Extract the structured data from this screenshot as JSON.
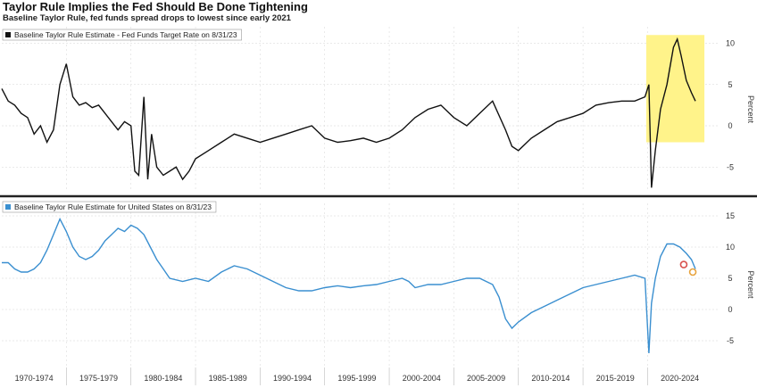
{
  "title": "Taylor Rule Implies the Fed Should Be Done Tightening",
  "subtitle": "Baseline Taylor Rule, fed funds spread drops to lowest since early 2021",
  "colors": {
    "spread_line": "#111111",
    "estimate_line": "#3a8fd0",
    "highlight": "#fff38a",
    "divider": "#222222",
    "grid": "#d4d4d4"
  },
  "chart_data": [
    {
      "type": "line",
      "legend": "Baseline Taylor Rule Estimate - Fed Funds Target Rate on 8/31/23",
      "ylabel": "Percent",
      "ylim": [
        -8,
        12
      ],
      "yticks": [
        10,
        5,
        0,
        -5
      ],
      "grid": true,
      "legend_position": "top-left",
      "highlight_region": {
        "x": [
          2019.9,
          2024.4
        ],
        "y": [
          -2,
          11
        ]
      },
      "x": [
        1970.0,
        1970.5,
        1971.0,
        1971.5,
        1972.0,
        1972.5,
        1973.0,
        1973.5,
        1974.0,
        1974.5,
        1975.0,
        1975.5,
        1976.0,
        1976.5,
        1977.0,
        1977.5,
        1978.0,
        1978.5,
        1979.0,
        1979.5,
        1980.0,
        1980.3,
        1980.6,
        1981.0,
        1981.3,
        1981.6,
        1982.0,
        1982.5,
        1983.0,
        1983.5,
        1984.0,
        1984.5,
        1985.0,
        1986.0,
        1987.0,
        1988.0,
        1989.0,
        1990.0,
        1991.0,
        1992.0,
        1993.0,
        1994.0,
        1995.0,
        1996.0,
        1997.0,
        1998.0,
        1999.0,
        2000.0,
        2001.0,
        2002.0,
        2003.0,
        2004.0,
        2005.0,
        2006.0,
        2007.0,
        2008.0,
        2009.0,
        2009.5,
        2010.0,
        2011.0,
        2012.0,
        2013.0,
        2014.0,
        2015.0,
        2016.0,
        2017.0,
        2018.0,
        2019.0,
        2019.8,
        2020.1,
        2020.3,
        2020.6,
        2021.0,
        2021.5,
        2022.0,
        2022.3,
        2022.6,
        2023.0,
        2023.4,
        2023.7
      ],
      "values": [
        4.5,
        3.0,
        2.5,
        1.5,
        1.0,
        -1.0,
        0.0,
        -2.0,
        -0.5,
        5.0,
        7.5,
        3.5,
        2.5,
        2.8,
        2.2,
        2.5,
        1.5,
        0.5,
        -0.5,
        0.5,
        0.0,
        -5.5,
        -6.0,
        3.5,
        -6.5,
        -1.0,
        -5.0,
        -6.0,
        -5.5,
        -5.0,
        -6.5,
        -5.5,
        -4.0,
        -3.0,
        -2.0,
        -1.0,
        -1.5,
        -2.0,
        -1.5,
        -1.0,
        -0.5,
        0.0,
        -1.5,
        -2.0,
        -1.8,
        -1.5,
        -2.0,
        -1.5,
        -0.5,
        1.0,
        2.0,
        2.5,
        1.0,
        0.0,
        1.5,
        3.0,
        -0.5,
        -2.5,
        -3.0,
        -1.5,
        -0.5,
        0.5,
        1.0,
        1.5,
        2.5,
        2.8,
        3.0,
        3.0,
        3.5,
        5.0,
        -7.5,
        -3.0,
        2.0,
        5.0,
        9.5,
        10.5,
        8.5,
        5.5,
        4.0,
        3.0
      ]
    },
    {
      "type": "line",
      "legend": "Baseline Taylor Rule Estimate for United States on 8/31/23",
      "ylabel": "Percent",
      "ylim": [
        -9,
        17
      ],
      "yticks": [
        15,
        10,
        5,
        0,
        -5
      ],
      "grid": true,
      "legend_position": "top-left",
      "categories": [
        "1970-1974",
        "1975-1979",
        "1980-1984",
        "1985-1989",
        "1990-1994",
        "1995-1999",
        "2000-2004",
        "2005-2009",
        "2010-2014",
        "2015-2019",
        "2020-2024"
      ],
      "x": [
        1970.0,
        1970.5,
        1971.0,
        1971.5,
        1972.0,
        1972.5,
        1973.0,
        1973.5,
        1974.0,
        1974.5,
        1975.0,
        1975.5,
        1976.0,
        1976.5,
        1977.0,
        1977.5,
        1978.0,
        1978.5,
        1979.0,
        1979.5,
        1980.0,
        1980.5,
        1981.0,
        1981.5,
        1982.0,
        1982.5,
        1983.0,
        1984.0,
        1985.0,
        1986.0,
        1987.0,
        1988.0,
        1989.0,
        1990.0,
        1991.0,
        1992.0,
        1993.0,
        1994.0,
        1995.0,
        1996.0,
        1997.0,
        1998.0,
        1999.0,
        2000.0,
        2001.0,
        2001.5,
        2002.0,
        2003.0,
        2004.0,
        2005.0,
        2006.0,
        2007.0,
        2008.0,
        2008.5,
        2009.0,
        2009.5,
        2010.0,
        2011.0,
        2012.0,
        2013.0,
        2014.0,
        2015.0,
        2016.0,
        2017.0,
        2018.0,
        2019.0,
        2019.8,
        2020.1,
        2020.3,
        2020.6,
        2021.0,
        2021.5,
        2022.0,
        2022.5,
        2023.0,
        2023.4,
        2023.7
      ],
      "values": [
        7.5,
        7.5,
        6.5,
        6.0,
        6.0,
        6.5,
        7.5,
        9.5,
        12.0,
        14.5,
        12.5,
        10.0,
        8.5,
        8.0,
        8.5,
        9.5,
        11.0,
        12.0,
        13.0,
        12.5,
        13.5,
        13.0,
        12.0,
        10.0,
        8.0,
        6.5,
        5.0,
        4.5,
        5.0,
        4.5,
        6.0,
        7.0,
        6.5,
        5.5,
        4.5,
        3.5,
        3.0,
        3.0,
        3.5,
        3.8,
        3.5,
        3.8,
        4.0,
        4.5,
        5.0,
        4.5,
        3.5,
        4.0,
        4.0,
        4.5,
        5.0,
        5.0,
        4.0,
        2.0,
        -1.5,
        -3.0,
        -2.0,
        -0.5,
        0.5,
        1.5,
        2.5,
        3.5,
        4.0,
        4.5,
        5.0,
        5.5,
        5.0,
        -7.0,
        1.0,
        5.0,
        8.5,
        10.5,
        10.5,
        10.0,
        9.0,
        8.0,
        6.5
      ],
      "markers": [
        {
          "x": 2022.8,
          "y": 7.2,
          "color": "#d9534f"
        },
        {
          "x": 2023.5,
          "y": 6.0,
          "color": "#e8a33d"
        }
      ]
    }
  ]
}
